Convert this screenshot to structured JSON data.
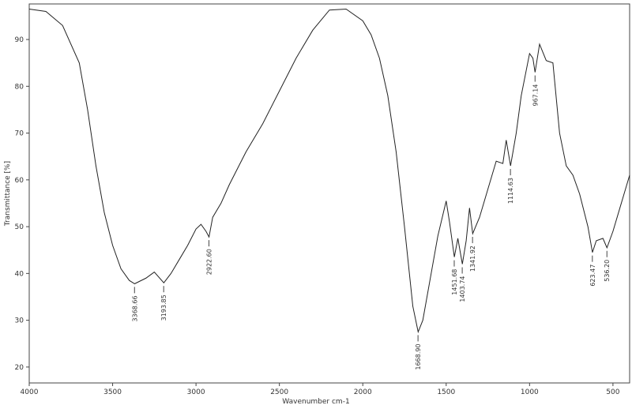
{
  "chart_data": {
    "type": "line",
    "x_label": "Wavenumber cm-1",
    "y_label": "Transmittance [%]",
    "xlim": [
      4000,
      400
    ],
    "ylim": [
      16.6,
      97.6
    ],
    "xticks": [
      4000,
      3500,
      3000,
      2500,
      2000,
      1500,
      1000,
      500
    ],
    "yticks": [
      20,
      30,
      40,
      50,
      60,
      70,
      80,
      90
    ],
    "series": [
      {
        "color": "#222222",
        "x": [
          4000,
          3900,
          3800,
          3700,
          3650,
          3600,
          3550,
          3500,
          3450,
          3400,
          3368,
          3300,
          3250,
          3193,
          3150,
          3100,
          3050,
          3000,
          2970,
          2940,
          2922,
          2900,
          2850,
          2800,
          2700,
          2600,
          2500,
          2400,
          2300,
          2200,
          2100,
          2000,
          1950,
          1900,
          1850,
          1800,
          1750,
          1700,
          1668,
          1640,
          1600,
          1550,
          1500,
          1480,
          1451,
          1430,
          1403,
          1380,
          1360,
          1341,
          1300,
          1250,
          1200,
          1160,
          1140,
          1114,
          1080,
          1050,
          1000,
          980,
          967,
          940,
          900,
          860,
          820,
          780,
          740,
          700,
          650,
          623,
          600,
          560,
          536,
          500,
          450,
          400
        ],
        "values": [
          96.5,
          96,
          93,
          85,
          75,
          63,
          53,
          46,
          41,
          38.5,
          37.8,
          39,
          40.3,
          38,
          40,
          43,
          46,
          49.5,
          50.5,
          49,
          47.8,
          52,
          55,
          59,
          66,
          72,
          79,
          86,
          92,
          96.3,
          96.5,
          94,
          91,
          86,
          78,
          66,
          50,
          33,
          27.5,
          30,
          38,
          48,
          55.5,
          51,
          43.5,
          47.5,
          42,
          47,
          54,
          48.5,
          52,
          58,
          64,
          63.5,
          68.5,
          63,
          70,
          78,
          87,
          86,
          83,
          89,
          85.5,
          85,
          70,
          63,
          61,
          57,
          50,
          44.5,
          47,
          47.5,
          45.5,
          49,
          55,
          61
        ]
      }
    ],
    "annotations": [
      {
        "label": "3368.66",
        "x": 3368.66,
        "y": 37.8
      },
      {
        "label": "3193.85",
        "x": 3193.85,
        "y": 38
      },
      {
        "label": "2922.60",
        "x": 2922.6,
        "y": 47.8
      },
      {
        "label": "1668.90",
        "x": 1668.9,
        "y": 27.5
      },
      {
        "label": "1451.68",
        "x": 1451.68,
        "y": 43.5
      },
      {
        "label": "1403.74",
        "x": 1403.74,
        "y": 42
      },
      {
        "label": "1341.92",
        "x": 1341.92,
        "y": 48.5
      },
      {
        "label": "1114.63",
        "x": 1114.63,
        "y": 63
      },
      {
        "label": "967.14",
        "x": 967.14,
        "y": 83
      },
      {
        "label": "623.47",
        "x": 623.47,
        "y": 44.5
      },
      {
        "label": "536.20",
        "x": 536.2,
        "y": 45.5
      }
    ]
  }
}
